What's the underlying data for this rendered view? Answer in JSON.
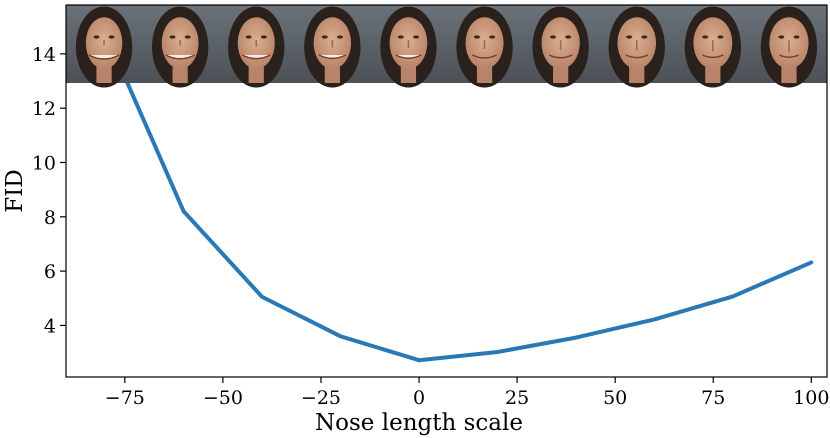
{
  "chart_data": {
    "type": "line",
    "xlabel": "Nose length scale",
    "ylabel": "FID",
    "xlim": [
      -90,
      104
    ],
    "ylim": [
      2.1,
      15.8
    ],
    "x_ticks": [
      -75,
      -50,
      -25,
      0,
      25,
      50,
      75,
      100
    ],
    "x_tick_labels": [
      "−75",
      "−50",
      "−25",
      "0",
      "25",
      "50",
      "75",
      "100"
    ],
    "y_ticks": [
      4,
      6,
      8,
      10,
      12,
      14
    ],
    "y_tick_labels": [
      "4",
      "6",
      "8",
      "10",
      "12",
      "14"
    ],
    "grid": false,
    "series": [
      {
        "color": "#2a78b5",
        "x": [
          -80,
          -60,
          -40,
          -20,
          0,
          20,
          40,
          60,
          80,
          100
        ],
        "y": [
          14.8,
          8.2,
          5.05,
          3.6,
          2.72,
          3.02,
          3.55,
          4.22,
          5.07,
          6.32
        ]
      }
    ],
    "thumbnail_strip": {
      "count": 10,
      "description_colors": {
        "background": "#5a6066",
        "skin": "#c9987c",
        "hair": "#2a201c"
      }
    }
  }
}
